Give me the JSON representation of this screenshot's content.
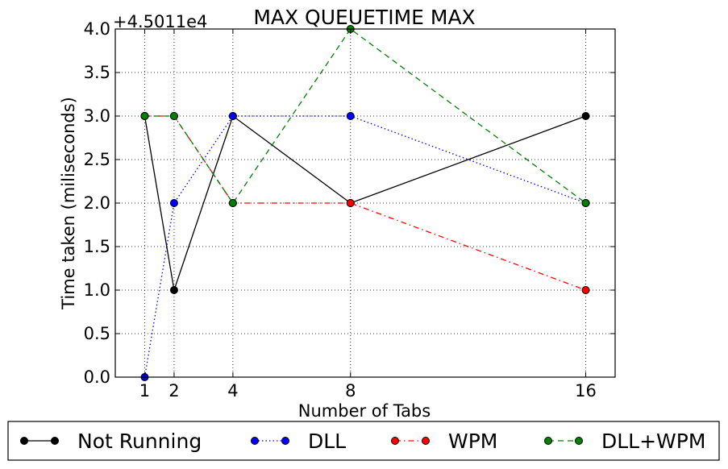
{
  "chart_data": {
    "type": "line",
    "title": "MAX QUEUETIME MAX",
    "xlabel": "Number of Tabs",
    "ylabel": "Time taken (miliseconds)",
    "offset_label": "+4.5011e4",
    "x": [
      1,
      2,
      4,
      8,
      16
    ],
    "xticks": [
      "1",
      "2",
      "4",
      "8",
      "16"
    ],
    "yticks": [
      "0.0",
      "0.5",
      "1.0",
      "1.5",
      "2.0",
      "2.5",
      "3.0",
      "3.5",
      "4.0"
    ],
    "xlim": [
      0,
      17
    ],
    "ylim": [
      0,
      4
    ],
    "grid": true,
    "legend_position": "bottom",
    "series": [
      {
        "name": "Not Running",
        "values": [
          3,
          1,
          3,
          2,
          3
        ],
        "color": "#000000",
        "dash": "solid"
      },
      {
        "name": "DLL",
        "values": [
          0,
          2,
          3,
          3,
          2
        ],
        "color": "#0000ff",
        "dash": "dotted"
      },
      {
        "name": "WPM",
        "values": [
          3,
          3,
          2,
          2,
          1
        ],
        "color": "#ff0000",
        "dash": "dashdot"
      },
      {
        "name": "DLL+WPM",
        "values": [
          3,
          3,
          2,
          4,
          2
        ],
        "color": "#008000",
        "dash": "dashed"
      }
    ]
  }
}
